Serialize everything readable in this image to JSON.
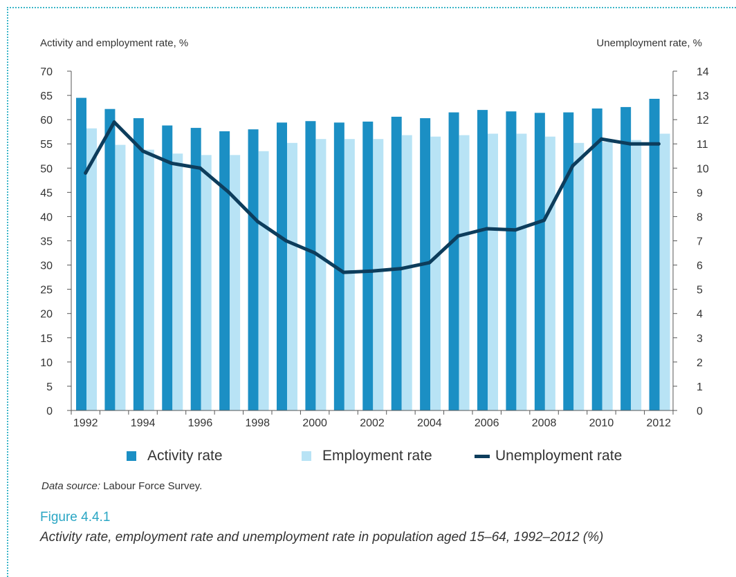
{
  "chart_data": {
    "type": "bar",
    "title": "",
    "left_axis_label": "Activity and employment rate, %",
    "right_axis_label": "Unemployment rate, %",
    "x": [
      "1992",
      "1993",
      "1994",
      "1995",
      "1996",
      "1997",
      "1998",
      "1999",
      "2000",
      "2001",
      "2002",
      "2003",
      "2004",
      "2005",
      "2006",
      "2007",
      "2008",
      "2009",
      "2010",
      "2011",
      "2012"
    ],
    "x_tick_labels": [
      "1992",
      "1994",
      "1996",
      "1998",
      "2000",
      "2002",
      "2004",
      "2006",
      "2008",
      "2010",
      "2012"
    ],
    "ylim_left": [
      0,
      70
    ],
    "left_ticks": [
      "0",
      "5",
      "10",
      "15",
      "20",
      "25",
      "30",
      "35",
      "40",
      "45",
      "50",
      "55",
      "60",
      "65",
      "70"
    ],
    "ylim_right": [
      0,
      14
    ],
    "right_ticks": [
      "0",
      "1",
      "2",
      "3",
      "4",
      "5",
      "6",
      "7",
      "8",
      "9",
      "10",
      "11",
      "12",
      "13",
      "14"
    ],
    "grid": false,
    "legend_position": "bottom",
    "series": [
      {
        "name": "Activity rate",
        "type": "bar",
        "axis": "left",
        "color": "#1b8fc4",
        "values": [
          64.5,
          62.2,
          60.3,
          58.8,
          58.3,
          57.6,
          58.0,
          59.4,
          59.7,
          59.4,
          59.6,
          60.6,
          60.3,
          61.5,
          62.0,
          61.7,
          61.4,
          61.5,
          62.3,
          62.6,
          64.3
        ]
      },
      {
        "name": "Employment rate",
        "type": "bar",
        "axis": "left",
        "color": "#b8e3f5",
        "values": [
          58.2,
          54.8,
          53.8,
          53.0,
          52.7,
          52.7,
          53.5,
          55.2,
          56.0,
          56.0,
          56.0,
          56.8,
          56.5,
          56.8,
          57.1,
          57.1,
          56.5,
          55.2,
          55.4,
          55.8,
          57.1
        ]
      },
      {
        "name": "Unemployment rate",
        "type": "line",
        "axis": "right",
        "color": "#0d3d5c",
        "values": [
          9.8,
          11.9,
          10.7,
          10.2,
          10.0,
          9.0,
          7.8,
          7.0,
          6.5,
          5.7,
          5.75,
          5.85,
          6.1,
          7.2,
          7.5,
          7.45,
          7.85,
          10.1,
          11.2,
          11.0,
          11.0
        ]
      }
    ]
  },
  "source": {
    "label": "Data source:",
    "text": " Labour Force Survey."
  },
  "figure": {
    "number": "Figure 4.4.1",
    "caption": "Activity rate, employment rate and unemployment rate in population aged 15–64, 1992–2012 (%)"
  }
}
